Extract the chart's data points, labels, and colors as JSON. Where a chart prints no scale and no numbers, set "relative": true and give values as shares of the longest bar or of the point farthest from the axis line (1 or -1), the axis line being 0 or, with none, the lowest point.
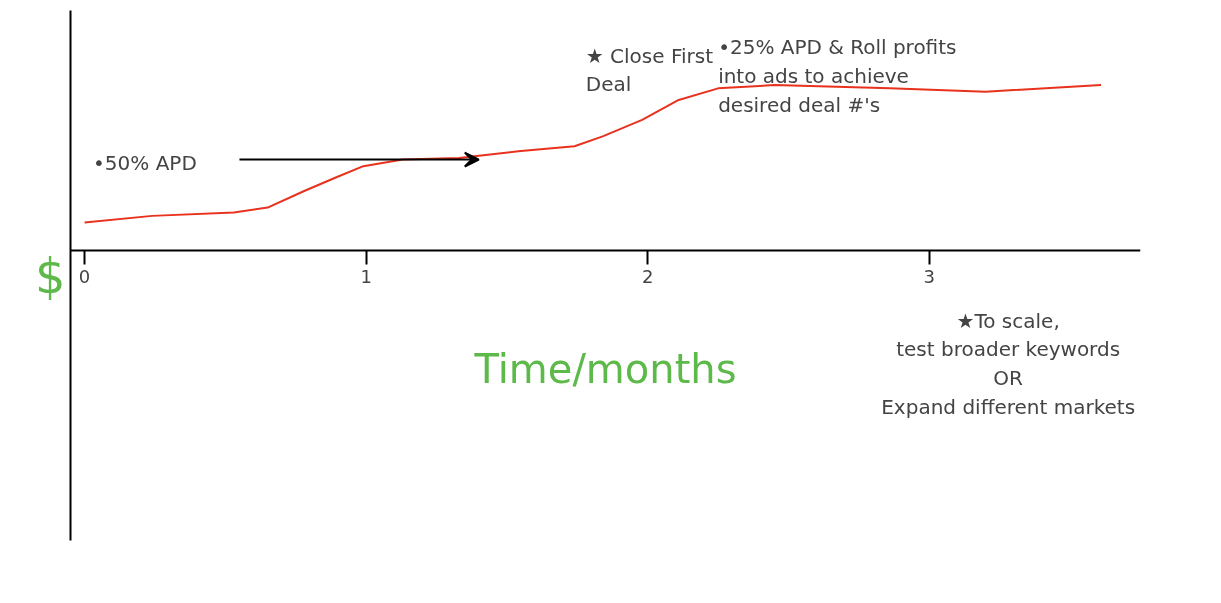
{
  "chart_data": {
    "type": "line",
    "relative": true,
    "xlabel": "Time/months",
    "ylabel": "$",
    "xlim": [
      -0.05,
      3.75
    ],
    "xticks": [
      0,
      1,
      2,
      3
    ],
    "tick_labels": "x",
    "grid": false,
    "marker": "none",
    "line_style": "solid",
    "series": [
      {
        "color": "#e8321e",
        "x": [
          0,
          0.24,
          0.53,
          0.65,
          0.78,
          0.89,
          0.99,
          1.13,
          1.33,
          1.54,
          1.74,
          1.84,
          1.98,
          2.11,
          2.25,
          2.45,
          2.86,
          3.2,
          3.61
        ],
        "values": [
          0.17,
          0.21,
          0.23,
          0.26,
          0.36,
          0.44,
          0.51,
          0.55,
          0.56,
          0.6,
          0.63,
          0.69,
          0.79,
          0.91,
          0.98,
          1.0,
          0.98,
          0.96,
          1.0
        ]
      }
    ],
    "annotations": [
      "•50% APD",
      "★ Close First Deal",
      "•25% APD & Roll profits into ads to achieve desired deal #'s",
      "★To scale, test broader keywords OR Expand different markets"
    ]
  }
}
